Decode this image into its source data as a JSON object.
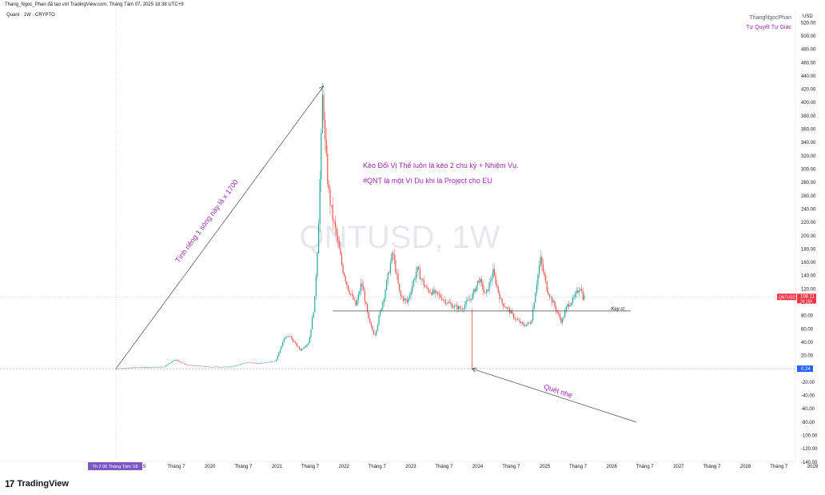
{
  "header": {
    "title_line": "Thang_Ngoc_Phan đã tạo với TradingView.com, Tháng Tám 07, 2025 18:38 UTC+9",
    "symbol_line": "Quant · 1W · CRYPTO",
    "author": "ThangNgocPhan",
    "author_tagline": "Tự Quyết Tự Giác",
    "currency": "USD"
  },
  "footer": {
    "brand": "TradingView",
    "brand_icon": "tradingview-logo-icon"
  },
  "colors": {
    "up": "#26a69a",
    "down": "#ef5350",
    "annotation": "#9c27b0",
    "price_badge": "#f23645",
    "line_badge": "#2962ff",
    "date_badge": "#7e57c2"
  },
  "chart_data": {
    "type": "candlestick",
    "symbol": "QNTUSD",
    "watermark": "QNTUSD, 1W",
    "interval": "1W",
    "x_range": [
      "2018-08-06",
      "2029-03-01"
    ],
    "y_range": [
      -145,
      530
    ],
    "y_ticks": [
      520,
      500,
      480,
      460,
      440,
      420,
      400,
      380,
      360,
      340,
      320,
      300,
      280,
      260,
      240,
      220,
      200,
      180,
      160,
      140,
      120,
      100,
      80,
      60,
      40,
      20,
      -20,
      -40,
      -60,
      -80,
      -100,
      -120,
      -140
    ],
    "x_ticks": [
      {
        "date": "2019-01-01",
        "label": "19"
      },
      {
        "date": "2019-07-01",
        "label": "Tháng 7"
      },
      {
        "date": "2020-01-01",
        "label": "2020"
      },
      {
        "date": "2020-07-01",
        "label": "Tháng 7"
      },
      {
        "date": "2021-01-01",
        "label": "2021"
      },
      {
        "date": "2021-07-01",
        "label": "Tháng 7"
      },
      {
        "date": "2022-01-01",
        "label": "2022"
      },
      {
        "date": "2022-07-01",
        "label": "Tháng 7"
      },
      {
        "date": "2023-01-01",
        "label": "2023"
      },
      {
        "date": "2023-07-01",
        "label": "Tháng 7"
      },
      {
        "date": "2024-01-01",
        "label": "2024"
      },
      {
        "date": "2024-07-01",
        "label": "Tháng 7"
      },
      {
        "date": "2025-01-01",
        "label": "2025"
      },
      {
        "date": "2025-07-01",
        "label": "Tháng 7"
      },
      {
        "date": "2026-01-01",
        "label": "2026"
      },
      {
        "date": "2026-07-01",
        "label": "Tháng 7"
      },
      {
        "date": "2027-01-01",
        "label": "2027"
      },
      {
        "date": "2027-07-01",
        "label": "Tháng 7"
      },
      {
        "date": "2028-01-01",
        "label": "2028"
      },
      {
        "date": "2028-07-01",
        "label": "Tháng 7"
      },
      {
        "date": "2029-01-01",
        "label": "2029"
      }
    ],
    "crosshair_date_label": "Th 2 06 Tháng Tám '18",
    "grid": false,
    "price_path": [
      [
        "2018-08-06",
        0.24
      ],
      [
        "2018-12-01",
        2
      ],
      [
        "2019-05-01",
        3
      ],
      [
        "2019-07-01",
        14
      ],
      [
        "2019-09-01",
        6
      ],
      [
        "2020-01-01",
        3
      ],
      [
        "2020-05-01",
        3
      ],
      [
        "2020-08-01",
        10
      ],
      [
        "2020-10-01",
        8
      ],
      [
        "2021-01-01",
        12
      ],
      [
        "2021-02-15",
        45
      ],
      [
        "2021-03-15",
        50
      ],
      [
        "2021-05-15",
        28
      ],
      [
        "2021-07-01",
        40
      ],
      [
        "2021-08-01",
        100
      ],
      [
        "2021-08-20",
        200
      ],
      [
        "2021-09-07",
        350
      ],
      [
        "2021-09-15",
        425
      ],
      [
        "2021-09-25",
        345
      ],
      [
        "2021-10-15",
        270
      ],
      [
        "2021-11-05",
        230
      ],
      [
        "2021-11-25",
        205
      ],
      [
        "2022-01-01",
        150
      ],
      [
        "2022-02-01",
        120
      ],
      [
        "2022-03-15",
        95
      ],
      [
        "2022-04-15",
        130
      ],
      [
        "2022-05-25",
        70
      ],
      [
        "2022-06-25",
        50
      ],
      [
        "2022-08-15",
        110
      ],
      [
        "2022-10-01",
        175
      ],
      [
        "2022-11-10",
        110
      ],
      [
        "2022-12-20",
        100
      ],
      [
        "2023-02-10",
        150
      ],
      [
        "2023-04-01",
        120
      ],
      [
        "2023-06-10",
        110
      ],
      [
        "2023-08-20",
        95
      ],
      [
        "2023-10-10",
        90
      ],
      [
        "2023-12-10",
        110
      ],
      [
        "2024-01-15",
        135
      ],
      [
        "2024-02-20",
        110
      ],
      [
        "2024-04-01",
        145
      ],
      [
        "2024-05-15",
        100
      ],
      [
        "2024-06-20",
        90
      ],
      [
        "2024-08-01",
        75
      ],
      [
        "2024-09-15",
        65
      ],
      [
        "2024-10-25",
        70
      ],
      [
        "2024-11-25",
        130
      ],
      [
        "2024-12-15",
        165
      ],
      [
        "2025-01-20",
        120
      ],
      [
        "2025-03-01",
        95
      ],
      [
        "2025-04-10",
        70
      ],
      [
        "2025-05-10",
        95
      ],
      [
        "2025-06-15",
        105
      ],
      [
        "2025-07-20",
        125
      ],
      [
        "2025-08-04",
        108
      ]
    ]
  },
  "axis": {
    "last_price": "108.11",
    "last_price_countdown": "3d 15h",
    "last_price_symbol": "QNTUSD",
    "baseline_value": "0.24"
  },
  "annotations": {
    "text_main": "Kèo Đổi Vị Thế luôn là kèo 2 chu kỳ + Nhiệm Vụ.",
    "text_sub": "#QNT là một Ví Dụ khi là Project cho EU",
    "trend_label": "Tính riêng 1 sóng này là x 1700",
    "sweep_label": "Quét nhẹ",
    "keyline_label": "Key ct",
    "keyline_value": 87,
    "trend_line": {
      "from": [
        "2018-08-06",
        0.24
      ],
      "to": [
        "2021-09-13",
        425
      ]
    },
    "sweep_line": {
      "from": [
        "2023-12-01",
        0.24
      ],
      "to": [
        "2026-05-15",
        -80
      ]
    },
    "sweep_wick": {
      "date": "2023-12-01",
      "from": 90,
      "to": 0.24
    }
  }
}
